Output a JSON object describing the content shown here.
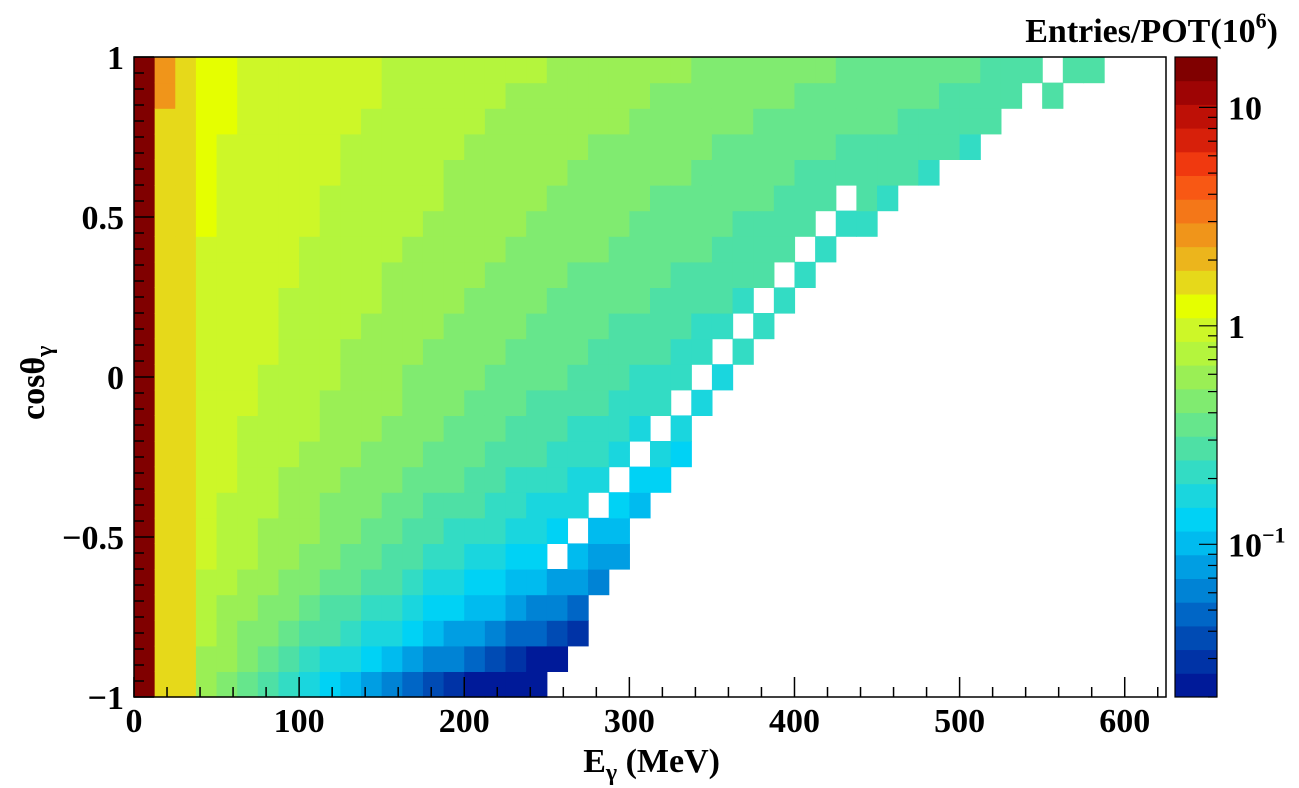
{
  "chart_data": {
    "type": "heatmap",
    "title": "Entries/POT(10",
    "title_exp": "6",
    "title_close": ")",
    "xlabel_main": "E",
    "xlabel_sub": "γ",
    "xlabel_unit": " (MeV)",
    "ylabel_main": "cosθ",
    "ylabel_sub": "γ",
    "xlim": [
      0,
      625
    ],
    "ylim": [
      -1,
      1
    ],
    "x_bin_width_MeV": 12.5,
    "y_bin_width": 0.08,
    "x_ticks": [
      "0",
      "100",
      "200",
      "300",
      "400",
      "500",
      "600"
    ],
    "x_tick_values": [
      0,
      100,
      200,
      300,
      400,
      500,
      600
    ],
    "y_ticks": [
      "−1",
      "−0.5",
      "0",
      "0.5",
      "1"
    ],
    "y_tick_values": [
      -1,
      -0.5,
      0,
      0.5,
      1
    ],
    "colorbar": {
      "scale": "log",
      "min": 0.02,
      "max": 17,
      "labels": [
        {
          "text": "10",
          "exp": "",
          "value": 10
        },
        {
          "text": "1",
          "exp": "",
          "value": 1
        },
        {
          "text": "10",
          "exp": "−1",
          "value": 0.1
        }
      ],
      "colors": [
        "#001a99",
        "#0033a6",
        "#004bb4",
        "#0066c6",
        "#0083d5",
        "#009ee3",
        "#00bbef",
        "#00d2f5",
        "#1ad6de",
        "#33dcc4",
        "#4ee0a5",
        "#66e68c",
        "#80eb70",
        "#9aef55",
        "#b4f53d",
        "#cdf728",
        "#e5ff00",
        "#e6d91a",
        "#ecb51c",
        "#f0951a",
        "#f47718",
        "#f85814",
        "#f0390f",
        "#d7200a",
        "#be1006",
        "#9e0404",
        "#800000"
      ]
    },
    "value_rule": "entries per POT(10^6) vs E_gamma and cos(theta_gamma); falls off with energy and more steeply at backward angles; blank bins above the kinematic edge"
  }
}
